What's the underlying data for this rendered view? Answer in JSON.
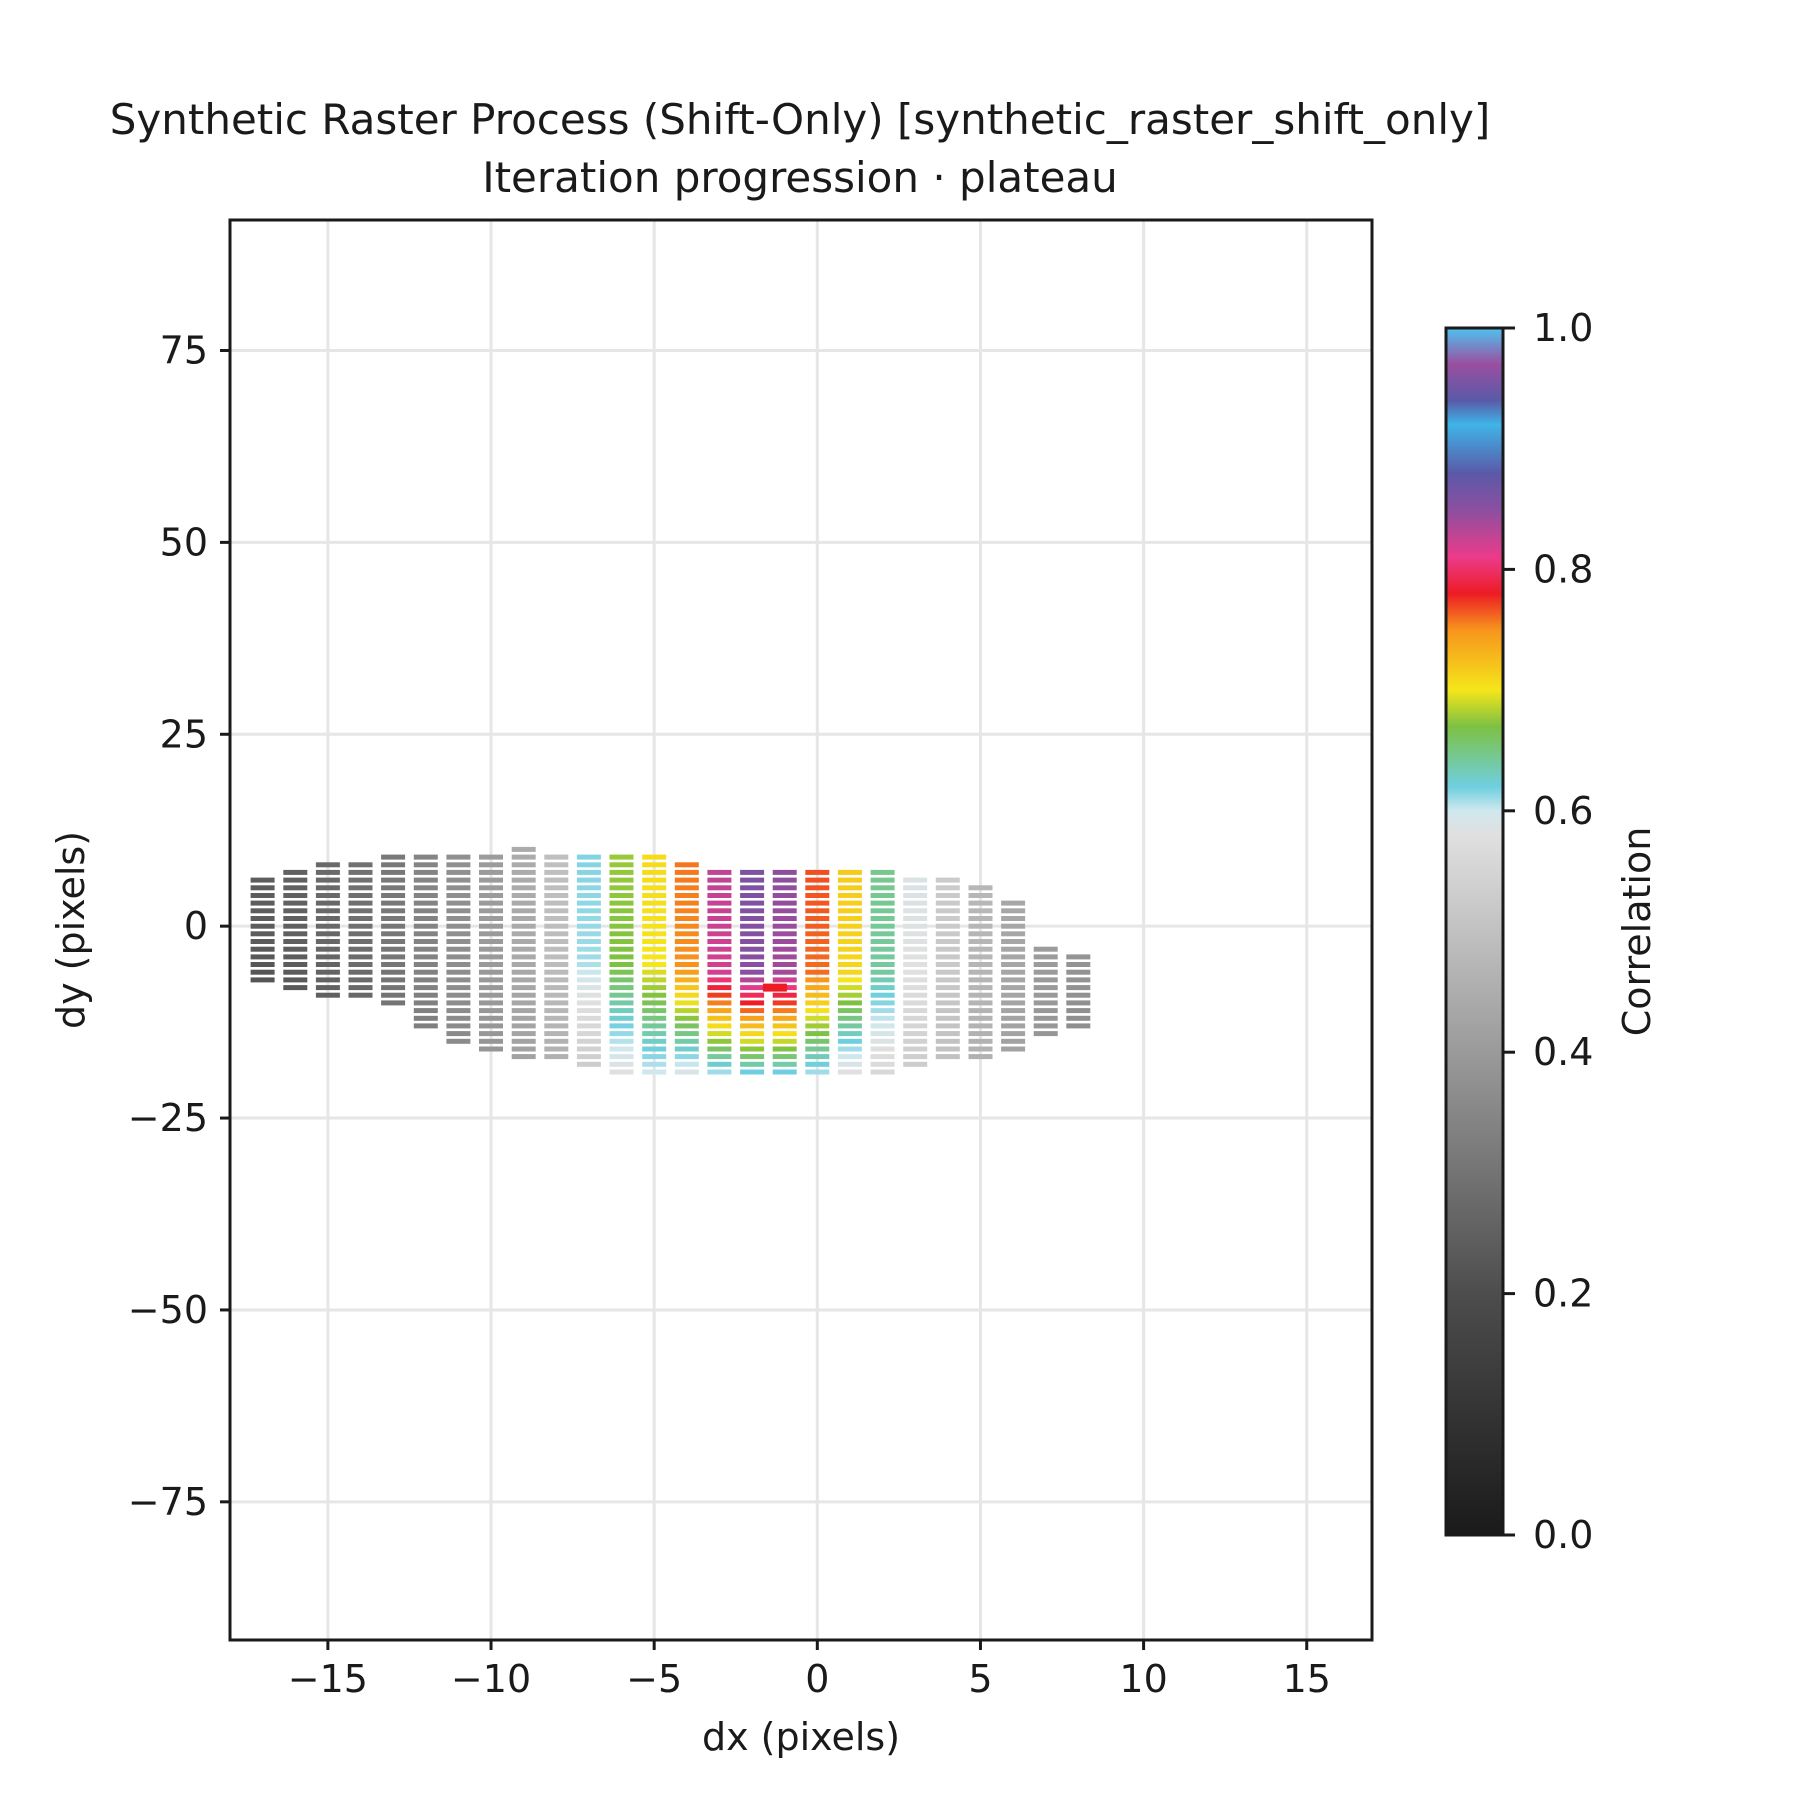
{
  "chart_data": {
    "type": "heatmap",
    "title": "Synthetic Raster Process (Shift-Only) [synthetic_raster_shift_only]",
    "subtitle": "Iteration progression · plateau",
    "xlabel": "dx (pixels)",
    "ylabel": "dy (pixels)",
    "xlim": [
      -18,
      17
    ],
    "ylim": [
      -93,
      92
    ],
    "xticks": [
      -15,
      -10,
      -5,
      0,
      5,
      10,
      15
    ],
    "xtick_labels": [
      "−15",
      "−10",
      "−5",
      "0",
      "5",
      "10",
      "15"
    ],
    "yticks": [
      75,
      50,
      25,
      0,
      -25,
      -50,
      -75
    ],
    "ytick_labels": [
      "75",
      "50",
      "25",
      "0",
      "−25",
      "−50",
      "−75"
    ],
    "grid": true,
    "colorbar": {
      "label": "Correlation",
      "range": [
        0.0,
        1.0
      ],
      "ticks": [
        0.0,
        0.2,
        0.4,
        0.6,
        0.8,
        1.0
      ],
      "tick_labels": [
        "0.0",
        "0.2",
        "0.4",
        "0.6",
        "0.8",
        "1.0"
      ],
      "stops": [
        {
          "v": 0.0,
          "color": "#1a1a1a"
        },
        {
          "v": 0.2,
          "color": "#4d4d4d"
        },
        {
          "v": 0.4,
          "color": "#9a9a9a"
        },
        {
          "v": 0.58,
          "color": "#e0e0e0"
        },
        {
          "v": 0.6,
          "color": "#cfe8ee"
        },
        {
          "v": 0.62,
          "color": "#6fcfe0"
        },
        {
          "v": 0.67,
          "color": "#7dc142"
        },
        {
          "v": 0.7,
          "color": "#f5e61a"
        },
        {
          "v": 0.75,
          "color": "#f7941d"
        },
        {
          "v": 0.78,
          "color": "#ed1c24"
        },
        {
          "v": 0.81,
          "color": "#ec3b8a"
        },
        {
          "v": 0.85,
          "color": "#8a4fa0"
        },
        {
          "v": 0.88,
          "color": "#5a5aa8"
        },
        {
          "v": 0.92,
          "color": "#3fb4e8"
        },
        {
          "v": 0.94,
          "color": "#5a5aa8"
        },
        {
          "v": 0.97,
          "color": "#9a4ea0"
        },
        {
          "v": 1.0,
          "color": "#4fc3f0"
        }
      ]
    },
    "columns": [
      {
        "dx": -17,
        "ymin": -7,
        "ymax": 6,
        "c0": 0.24,
        "c1": 0.22
      },
      {
        "dx": -16,
        "ymin": -8,
        "ymax": 7,
        "c0": 0.25,
        "c1": 0.23
      },
      {
        "dx": -15,
        "ymin": -9,
        "ymax": 8,
        "c0": 0.27,
        "c1": 0.25
      },
      {
        "dx": -14,
        "ymin": -9,
        "ymax": 8,
        "c0": 0.29,
        "c1": 0.27
      },
      {
        "dx": -13,
        "ymin": -10,
        "ymax": 9,
        "c0": 0.31,
        "c1": 0.3
      },
      {
        "dx": -12,
        "ymin": -13,
        "ymax": 9,
        "c0": 0.34,
        "c1": 0.33
      },
      {
        "dx": -11,
        "ymin": -15,
        "ymax": 9,
        "c0": 0.37,
        "c1": 0.36
      },
      {
        "dx": -10,
        "ymin": -16,
        "ymax": 9,
        "c0": 0.4,
        "c1": 0.39
      },
      {
        "dx": -9,
        "ymin": -17,
        "ymax": 10,
        "c0": 0.44,
        "c1": 0.42
      },
      {
        "dx": -8,
        "ymin": -17,
        "ymax": 9,
        "c0": 0.49,
        "c1": 0.46
      },
      {
        "dx": -7,
        "ymin": -18,
        "ymax": 9,
        "c0": 0.61,
        "c1": 0.53
      },
      {
        "dx": -6,
        "ymin": -19,
        "ymax": 9,
        "c0": 0.67,
        "c1": 0.58
      },
      {
        "dx": -5,
        "ymin": -19,
        "ymax": 9,
        "c0": 0.7,
        "c1": 0.6
      },
      {
        "dx": -4,
        "ymin": -19,
        "ymax": 8,
        "c0": 0.75,
        "c1": 0.59
      },
      {
        "dx": -3,
        "ymin": -19,
        "ymax": 7,
        "c0": 0.82,
        "c1": 0.61
      },
      {
        "dx": -2,
        "ymin": -19,
        "ymax": 7,
        "c0": 0.85,
        "c1": 0.62
      },
      {
        "dx": -1,
        "ymin": -19,
        "ymax": 7,
        "c0": 0.84,
        "c1": 0.62
      },
      {
        "dx": 0,
        "ymin": -19,
        "ymax": 7,
        "c0": 0.76,
        "c1": 0.61
      },
      {
        "dx": 1,
        "ymin": -19,
        "ymax": 7,
        "c0": 0.71,
        "c1": 0.58
      },
      {
        "dx": 2,
        "ymin": -19,
        "ymax": 7,
        "c0": 0.64,
        "c1": 0.56
      },
      {
        "dx": 3,
        "ymin": -18,
        "ymax": 6,
        "c0": 0.58,
        "c1": 0.53
      },
      {
        "dx": 4,
        "ymin": -17,
        "ymax": 6,
        "c0": 0.52,
        "c1": 0.5
      },
      {
        "dx": 5,
        "ymin": -17,
        "ymax": 5,
        "c0": 0.47,
        "c1": 0.46
      },
      {
        "dx": 6,
        "ymin": -16,
        "ymax": 3,
        "c0": 0.43,
        "c1": 0.42
      },
      {
        "dx": 7,
        "ymin": -14,
        "ymax": -3,
        "c0": 0.4,
        "c1": 0.39
      },
      {
        "dx": 8,
        "ymin": -13,
        "ymax": -4,
        "c0": 0.38,
        "c1": 0.37
      }
    ],
    "best_marker": {
      "dx": -1.3,
      "dy": -8,
      "color": "#ed1c24"
    }
  }
}
